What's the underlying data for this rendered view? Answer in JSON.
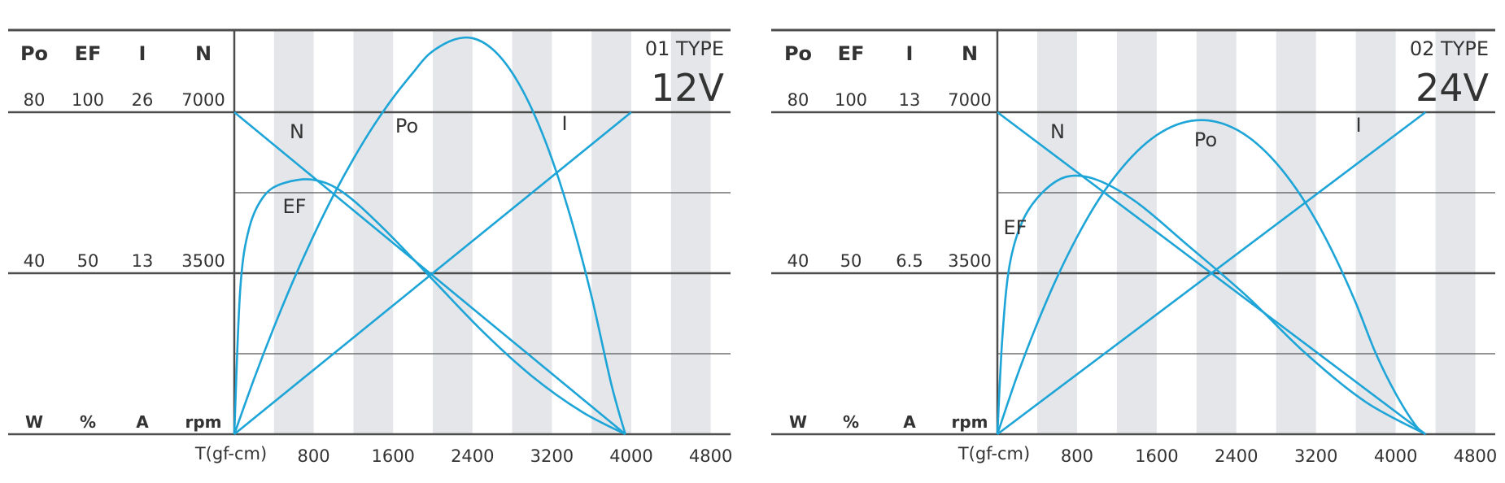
{
  "colors": {
    "curve": "#1ea5d8",
    "stripe": "#e4e6e9",
    "frame": "#4d4d4d",
    "grid": "#555555",
    "text": "#333333"
  },
  "chart_data": [
    {
      "type": "line",
      "type_label": "01 TYPE",
      "voltage": "12V",
      "xlabel": "T(gf-cm)",
      "x_ticks": [
        800,
        1600,
        2400,
        3200,
        4000,
        4800
      ],
      "xlim": [
        0,
        5000
      ],
      "scale_headers": [
        "Po",
        "EF",
        "I",
        "N"
      ],
      "scale_top": [
        "80",
        "100",
        "26",
        "7000"
      ],
      "scale_mid": [
        "40",
        "50",
        "13",
        "3500"
      ],
      "units": [
        "W",
        "%",
        "A",
        "rpm"
      ],
      "series": [
        {
          "name": "N",
          "unit": "rpm",
          "x": [
            0,
            3940
          ],
          "y": [
            7000,
            0
          ]
        },
        {
          "name": "I",
          "unit": "A",
          "x": [
            0,
            4000
          ],
          "y": [
            0,
            26
          ]
        },
        {
          "name": "Po",
          "unit": "W",
          "x": [
            0,
            200,
            400,
            600,
            800,
            1000,
            1200,
            1400,
            1600,
            1800,
            1970,
            2200,
            2400,
            2600,
            2800,
            3000,
            3200,
            3400,
            3600,
            3800,
            3940
          ],
          "y": [
            0,
            13.8,
            26.6,
            38.5,
            49.4,
            59.4,
            68.4,
            76.5,
            83.6,
            89.8,
            94.6,
            97.9,
            98.4,
            95.7,
            89.8,
            80.7,
            68.4,
            52.9,
            34.2,
            12.3,
            0
          ]
        },
        {
          "name": "EF",
          "unit": "%",
          "x": [
            0,
            60,
            150,
            300,
            500,
            800,
            1100,
            1500,
            2000,
            2500,
            3000,
            3500,
            3940
          ],
          "y": [
            0,
            45,
            64,
            74,
            78,
            79,
            75,
            64,
            48,
            32,
            18,
            7,
            0
          ]
        }
      ]
    },
    {
      "type": "line",
      "type_label": "02 TYPE",
      "voltage": "24V",
      "xlabel": "T(gf-cm)",
      "x_ticks": [
        800,
        1600,
        2400,
        3200,
        4000,
        4800
      ],
      "xlim": [
        0,
        5000
      ],
      "scale_headers": [
        "Po",
        "EF",
        "I",
        "N"
      ],
      "scale_top": [
        "80",
        "100",
        "13",
        "7000"
      ],
      "scale_mid": [
        "40",
        "50",
        "6.5",
        "3500"
      ],
      "units": [
        "W",
        "%",
        "A",
        "rpm"
      ],
      "series": [
        {
          "name": "N",
          "unit": "rpm",
          "x": [
            0,
            4300
          ],
          "y": [
            7000,
            0
          ]
        },
        {
          "name": "I",
          "unit": "A",
          "x": [
            0,
            4300
          ],
          "y": [
            0,
            13
          ]
        },
        {
          "name": "Po",
          "unit": "W",
          "x": [
            0,
            200,
            400,
            600,
            800,
            1000,
            1200,
            1400,
            1600,
            1800,
            2000,
            2200,
            2400,
            2600,
            2800,
            3000,
            3200,
            3400,
            3600,
            3800,
            4000,
            4200,
            4300
          ],
          "y": [
            0,
            14.6,
            27.5,
            39.0,
            49.0,
            57.6,
            64.6,
            70.2,
            74.3,
            76.9,
            78.0,
            77.6,
            75.7,
            72.3,
            67.4,
            61.0,
            53.1,
            43.6,
            32.6,
            20.1,
            10.1,
            2.2,
            0
          ]
        },
        {
          "name": "EF",
          "unit": "%",
          "x": [
            0,
            50,
            120,
            250,
            450,
            700,
            1000,
            1400,
            1900,
            2500,
            3100,
            3700,
            4300
          ],
          "y": [
            0,
            30,
            52,
            66,
            75,
            80,
            79,
            72,
            59,
            43,
            25,
            10,
            0
          ]
        }
      ]
    }
  ]
}
